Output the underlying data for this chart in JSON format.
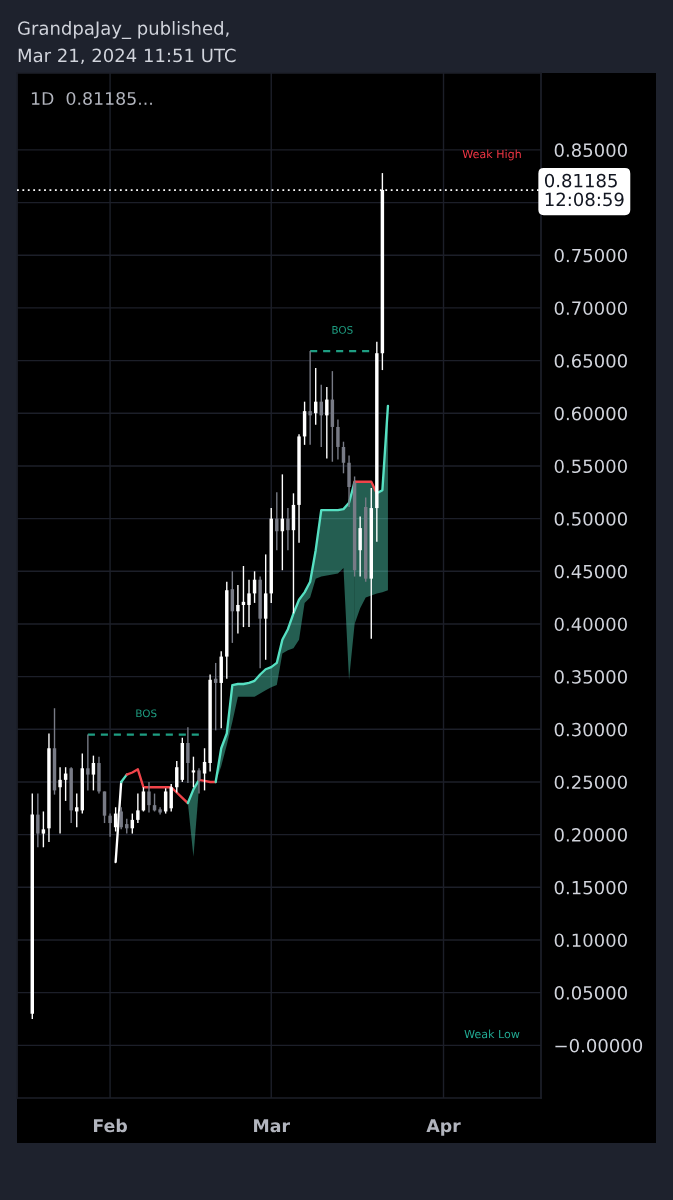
{
  "chart_data": {
    "type": "candlestick",
    "title": "GrandpaJay_ published,",
    "subtitle": "Mar 21, 2024 11:51 UTC",
    "x": [
      "2024-01-18",
      "2024-01-19",
      "2024-01-20",
      "2024-01-21",
      "2024-01-22",
      "2024-01-23",
      "2024-01-24",
      "2024-01-25",
      "2024-01-26",
      "2024-01-27",
      "2024-01-28",
      "2024-01-29",
      "2024-01-30",
      "2024-01-31",
      "2024-02-01",
      "2024-02-02",
      "2024-02-03",
      "2024-02-04",
      "2024-02-05",
      "2024-02-06",
      "2024-02-07",
      "2024-02-08",
      "2024-02-09",
      "2024-02-10",
      "2024-02-11",
      "2024-02-12",
      "2024-02-13",
      "2024-02-14",
      "2024-02-15",
      "2024-02-16",
      "2024-02-17",
      "2024-02-18",
      "2024-02-19",
      "2024-02-20",
      "2024-02-21",
      "2024-02-22",
      "2024-02-23",
      "2024-02-24",
      "2024-02-25",
      "2024-02-26",
      "2024-02-27",
      "2024-02-28",
      "2024-02-29",
      "2024-03-01",
      "2024-03-02",
      "2024-03-03",
      "2024-03-04",
      "2024-03-05",
      "2024-03-06",
      "2024-03-07",
      "2024-03-08",
      "2024-03-09",
      "2024-03-10",
      "2024-03-11",
      "2024-03-12",
      "2024-03-13",
      "2024-03-14",
      "2024-03-15",
      "2024-03-16",
      "2024-03-17",
      "2024-03-18",
      "2024-03-19",
      "2024-03-20",
      "2024-03-21"
    ],
    "ohlc": [
      [
        0.03,
        0.239,
        0.025,
        0.219
      ],
      [
        0.219,
        0.239,
        0.188,
        0.201
      ],
      [
        0.201,
        0.222,
        0.188,
        0.205
      ],
      [
        0.206,
        0.296,
        0.193,
        0.282
      ],
      [
        0.282,
        0.32,
        0.238,
        0.242
      ],
      [
        0.245,
        0.264,
        0.201,
        0.252
      ],
      [
        0.252,
        0.264,
        0.232,
        0.258
      ],
      [
        0.263,
        0.264,
        0.211,
        0.223
      ],
      [
        0.222,
        0.239,
        0.207,
        0.226
      ],
      [
        0.223,
        0.277,
        0.22,
        0.263
      ],
      [
        0.263,
        0.295,
        0.242,
        0.257
      ],
      [
        0.257,
        0.275,
        0.242,
        0.268
      ],
      [
        0.268,
        0.274,
        0.239,
        0.241
      ],
      [
        0.241,
        0.241,
        0.211,
        0.218
      ],
      [
        0.218,
        0.22,
        0.198,
        0.211
      ],
      [
        0.207,
        0.226,
        0.203,
        0.22
      ],
      [
        0.222,
        0.226,
        0.205,
        0.207
      ],
      [
        0.21,
        0.215,
        0.201,
        0.206
      ],
      [
        0.206,
        0.22,
        0.201,
        0.214
      ],
      [
        0.214,
        0.239,
        0.211,
        0.223
      ],
      [
        0.223,
        0.245,
        0.222,
        0.241
      ],
      [
        0.241,
        0.25,
        0.221,
        0.228
      ],
      [
        0.228,
        0.239,
        0.222,
        0.223
      ],
      [
        0.224,
        0.226,
        0.219,
        0.221
      ],
      [
        0.222,
        0.244,
        0.22,
        0.241
      ],
      [
        0.225,
        0.248,
        0.222,
        0.245
      ],
      [
        0.245,
        0.27,
        0.24,
        0.264
      ],
      [
        0.252,
        0.292,
        0.25,
        0.287
      ],
      [
        0.287,
        0.302,
        0.249,
        0.268
      ],
      [
        0.259,
        0.274,
        0.245,
        0.261
      ],
      [
        0.261,
        0.263,
        0.239,
        0.252
      ],
      [
        0.258,
        0.282,
        0.242,
        0.269
      ],
      [
        0.268,
        0.352,
        0.26,
        0.347
      ],
      [
        0.348,
        0.363,
        0.299,
        0.344
      ],
      [
        0.344,
        0.374,
        0.301,
        0.369
      ],
      [
        0.369,
        0.44,
        0.348,
        0.432
      ],
      [
        0.433,
        0.45,
        0.382,
        0.412
      ],
      [
        0.412,
        0.437,
        0.391,
        0.418
      ],
      [
        0.418,
        0.455,
        0.397,
        0.421
      ],
      [
        0.418,
        0.442,
        0.397,
        0.429
      ],
      [
        0.429,
        0.45,
        0.42,
        0.442
      ],
      [
        0.442,
        0.445,
        0.358,
        0.405
      ],
      [
        0.405,
        0.466,
        0.366,
        0.429
      ],
      [
        0.429,
        0.51,
        0.42,
        0.5
      ],
      [
        0.5,
        0.525,
        0.47,
        0.488
      ],
      [
        0.488,
        0.542,
        0.451,
        0.5
      ],
      [
        0.5,
        0.51,
        0.47,
        0.489
      ],
      [
        0.489,
        0.524,
        0.41,
        0.513
      ],
      [
        0.513,
        0.58,
        0.477,
        0.578
      ],
      [
        0.578,
        0.611,
        0.57,
        0.602
      ],
      [
        0.602,
        0.659,
        0.57,
        0.598
      ],
      [
        0.6,
        0.643,
        0.589,
        0.611
      ],
      [
        0.611,
        0.627,
        0.568,
        0.598
      ],
      [
        0.598,
        0.625,
        0.557,
        0.613
      ],
      [
        0.613,
        0.64,
        0.554,
        0.587
      ],
      [
        0.587,
        0.594,
        0.556,
        0.568
      ],
      [
        0.568,
        0.573,
        0.543,
        0.553
      ],
      [
        0.553,
        0.56,
        0.511,
        0.53
      ],
      [
        0.534,
        0.54,
        0.445,
        0.451
      ],
      [
        0.47,
        0.502,
        0.445,
        0.491
      ],
      [
        0.511,
        0.52,
        0.44,
        0.443
      ],
      [
        0.443,
        0.529,
        0.386,
        0.51
      ],
      [
        0.51,
        0.668,
        0.478,
        0.657
      ],
      [
        0.657,
        0.828,
        0.641,
        0.81185
      ]
    ],
    "colors": [
      "#ffffff",
      "#787b86",
      "#ffffff",
      "#ffffff",
      "#787b86",
      "#ffffff",
      "#ffffff",
      "#787b86",
      "#ffffff",
      "#ffffff",
      "#787b86",
      "#ffffff",
      "#787b86",
      "#787b86",
      "#787b86",
      "#ffffff",
      "#787b86",
      "#787b86",
      "#ffffff",
      "#ffffff",
      "#ffffff",
      "#787b86",
      "#787b86",
      "#787b86",
      "#ffffff",
      "#ffffff",
      "#ffffff",
      "#ffffff",
      "#787b86",
      "#ffffff",
      "#787b86",
      "#ffffff",
      "#ffffff",
      "#787b86",
      "#ffffff",
      "#ffffff",
      "#787b86",
      "#ffffff",
      "#ffffff",
      "#ffffff",
      "#ffffff",
      "#787b86",
      "#ffffff",
      "#ffffff",
      "#787b86",
      "#ffffff",
      "#787b86",
      "#ffffff",
      "#ffffff",
      "#ffffff",
      "#787b86",
      "#ffffff",
      "#787b86",
      "#ffffff",
      "#787b86",
      "#787b86",
      "#787b86",
      "#787b86",
      "#787b86",
      "#ffffff",
      "#787b86",
      "#ffffff",
      "#ffffff",
      "#ffffff"
    ],
    "series": [
      {
        "type": "line",
        "color": "#ffffff",
        "x": [
          "2024-02-02",
          "2024-02-03"
        ],
        "values": [
          0.174,
          0.25
        ]
      },
      {
        "type": "line",
        "color": "#56e0c2",
        "x": [
          "2024-02-03",
          "2024-02-04"
        ],
        "values": [
          0.25,
          0.257
        ]
      },
      {
        "type": "line",
        "color": "#f0444a",
        "x": [
          "2024-02-04",
          "2024-02-05",
          "2024-02-06",
          "2024-02-07",
          "2024-02-08",
          "2024-02-09",
          "2024-02-10",
          "2024-02-11",
          "2024-02-12",
          "2024-02-13",
          "2024-02-14",
          "2024-02-15"
        ],
        "values": [
          0.257,
          0.259,
          0.262,
          0.245,
          0.245,
          0.245,
          0.245,
          0.245,
          0.245,
          0.24,
          0.235,
          0.23
        ]
      },
      {
        "type": "line",
        "color": "#56e0c2",
        "x": [
          "2024-02-15",
          "2024-02-16",
          "2024-02-17"
        ],
        "values": [
          0.23,
          0.243,
          0.252
        ],
        "lower": [
          0.23,
          0.179,
          0.245
        ],
        "upper": [
          0.23,
          0.243,
          0.252
        ]
      },
      {
        "type": "line",
        "color": "#f0444a",
        "x": [
          "2024-02-17",
          "2024-02-18",
          "2024-02-19",
          "2024-02-20"
        ],
        "values": [
          0.252,
          0.251,
          0.25,
          0.25
        ]
      },
      {
        "type": "line",
        "color": "#56e0c2",
        "x": [
          "2024-02-20",
          "2024-02-21",
          "2024-02-22",
          "2024-02-23",
          "2024-02-24",
          "2024-02-25",
          "2024-02-26",
          "2024-02-27",
          "2024-02-28",
          "2024-02-29",
          "2024-03-01",
          "2024-03-02",
          "2024-03-03",
          "2024-03-04",
          "2024-03-05",
          "2024-03-06",
          "2024-03-07",
          "2024-03-08",
          "2024-03-09",
          "2024-03-10",
          "2024-03-11",
          "2024-03-12",
          "2024-03-13",
          "2024-03-14",
          "2024-03-15",
          "2024-03-16"
        ],
        "values": [
          0.25,
          0.282,
          0.296,
          0.342,
          0.343,
          0.343,
          0.344,
          0.346,
          0.352,
          0.357,
          0.359,
          0.363,
          0.385,
          0.395,
          0.41,
          0.423,
          0.43,
          0.44,
          0.47,
          0.508,
          0.508,
          0.508,
          0.508,
          0.509,
          0.515,
          0.535
        ],
        "lower": [
          0.25,
          0.265,
          0.285,
          0.307,
          0.331,
          0.331,
          0.331,
          0.331,
          0.334,
          0.337,
          0.34,
          0.342,
          0.372,
          0.375,
          0.377,
          0.385,
          0.42,
          0.425,
          0.443,
          0.445,
          0.446,
          0.447,
          0.448,
          0.453,
          0.347,
          0.4
        ],
        "upper": [
          0.25,
          0.282,
          0.296,
          0.342,
          0.343,
          0.343,
          0.344,
          0.346,
          0.352,
          0.357,
          0.359,
          0.363,
          0.385,
          0.395,
          0.41,
          0.423,
          0.43,
          0.44,
          0.47,
          0.508,
          0.508,
          0.508,
          0.508,
          0.509,
          0.515,
          0.535
        ]
      },
      {
        "type": "line",
        "color": "#f0444a",
        "x": [
          "2024-03-16",
          "2024-03-17",
          "2024-03-18",
          "2024-03-19",
          "2024-03-20"
        ],
        "values": [
          0.535,
          0.535,
          0.535,
          0.535,
          0.524
        ]
      },
      {
        "type": "line",
        "color": "#56e0c2",
        "x": [
          "2024-03-16",
          "2024-03-17",
          "2024-03-18",
          "2024-03-19",
          "2024-03-20",
          "2024-03-21",
          "2024-03-22"
        ],
        "values": [
          null,
          null,
          null,
          null,
          0.524,
          0.527,
          0.607
        ],
        "lower": [
          0.4,
          0.415,
          0.425,
          0.427,
          0.429,
          0.43,
          0.432
        ],
        "upper": [
          0.535,
          0.535,
          0.535,
          0.535,
          0.524,
          0.527,
          0.607
        ]
      },
      {
        "type": "line",
        "name": "BOS",
        "color": "#1e9e82",
        "line_style": "dashed",
        "x": [
          "2024-01-28",
          "2024-02-18"
        ],
        "values": [
          0.295,
          0.295
        ]
      },
      {
        "type": "line",
        "name": "BOS",
        "color": "#1e9e82",
        "line_style": "dashed",
        "x": [
          "2024-03-08",
          "2024-03-19T14:00"
        ],
        "values": [
          0.659,
          0.659
        ]
      }
    ],
    "xlim": [
      "2024-01-15T06:00",
      "2024-04-18T13:00"
    ],
    "xticks": [
      {
        "value": "2024-02-01",
        "label": "Feb"
      },
      {
        "value": "2024-03-01",
        "label": "Mar"
      },
      {
        "value": "2024-04-01",
        "label": "Apr"
      }
    ],
    "ylim": [
      -0.05,
      0.923
    ],
    "yticks": [
      {
        "value": 0.0,
        "label": "−0.00000"
      },
      {
        "value": 0.05,
        "label": "0.05000"
      },
      {
        "value": 0.1,
        "label": "0.10000"
      },
      {
        "value": 0.15,
        "label": "0.15000"
      },
      {
        "value": 0.2,
        "label": "0.20000"
      },
      {
        "value": 0.25,
        "label": "0.25000"
      },
      {
        "value": 0.3,
        "label": "0.30000"
      },
      {
        "value": 0.35,
        "label": "0.35000"
      },
      {
        "value": 0.4,
        "label": "0.40000"
      },
      {
        "value": 0.45,
        "label": "0.45000"
      },
      {
        "value": 0.5,
        "label": "0.50000"
      },
      {
        "value": 0.55,
        "label": "0.55000"
      },
      {
        "value": 0.6,
        "label": "0.60000"
      },
      {
        "value": 0.65,
        "label": "0.65000"
      },
      {
        "value": 0.7,
        "label": "0.70000"
      },
      {
        "value": 0.75,
        "label": "0.75000"
      },
      {
        "value": 0.8,
        "label": null
      },
      {
        "value": 0.85,
        "label": "0.85000"
      }
    ],
    "grid": true,
    "ref_lines": [
      {
        "axis": "y",
        "value": 0.81185,
        "label": "0.81185\n12:08:59",
        "color": "#ffffff",
        "line_style": "dotted"
      }
    ],
    "annotations": [
      "1D  0.81185...",
      "Weak High",
      "Weak Low"
    ]
  }
}
